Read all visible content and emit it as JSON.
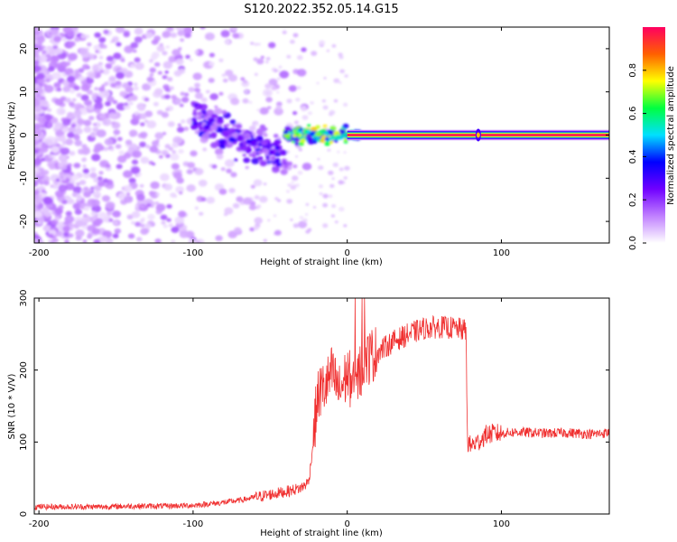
{
  "chart_data": [
    {
      "type": "heatmap",
      "title": "S120.2022.352.05.14.G15",
      "xlabel": "Height of straight line (km)",
      "ylabel": "Frequency (Hz)",
      "xlim": [
        -203,
        170
      ],
      "ylim": [
        -25,
        25
      ],
      "xticks": [
        -200,
        -100,
        0,
        100
      ],
      "yticks": [
        -20,
        -10,
        0,
        10,
        20
      ],
      "colorbar": {
        "label": "Normalized spectral amplitude",
        "range": [
          0,
          1
        ],
        "ticks": [
          "0.0",
          "0.2",
          "0.4",
          "0.6",
          "0.8"
        ],
        "colors": [
          "#ffffff",
          "#c080ff",
          "#7000ff",
          "#0000ff",
          "#00e0ff",
          "#00ff40",
          "#ffff00",
          "#ff6000",
          "#ff0060"
        ]
      },
      "features": [
        {
          "x_range": [
            -203,
            -60
          ],
          "freq_range": [
            -25,
            25
          ],
          "amplitude": "0.0-0.2",
          "description": "noise"
        },
        {
          "x_range": [
            -100,
            -40
          ],
          "freq_center_start": 4,
          "freq_center_end": -8,
          "amplitude": "0.1-0.5"
        },
        {
          "x_range": [
            -40,
            0
          ],
          "freq_center": 0,
          "amplitude": "0.3-0.9"
        },
        {
          "x_range": [
            0,
            170
          ],
          "freq_center": 0,
          "amplitude": "1.0"
        }
      ]
    },
    {
      "type": "line",
      "xlabel": "Height of straight line (km)",
      "ylabel": "SNR (10 * V/V)",
      "xlim": [
        -203,
        170
      ],
      "ylim": [
        0,
        300
      ],
      "xticks": [
        -200,
        -100,
        0,
        100
      ],
      "yticks": [
        0,
        100,
        200,
        300
      ],
      "color": "#f03030",
      "series": [
        {
          "x": [
            -203,
            -180,
            -160,
            -140,
            -120,
            -100,
            -90,
            -80,
            -70,
            -60,
            -50,
            -40,
            -30,
            -25,
            -22,
            -20,
            -18,
            -15,
            -12,
            -10,
            -5,
            0,
            5,
            10,
            15,
            20,
            30,
            40,
            50,
            60,
            70,
            77,
            78,
            80,
            85,
            90,
            95,
            100,
            110,
            120,
            130,
            140,
            150,
            160,
            170
          ],
          "y": [
            10,
            10,
            10,
            11,
            11,
            12,
            14,
            16,
            19,
            23,
            27,
            31,
            36,
            45,
            100,
            150,
            170,
            175,
            185,
            195,
            170,
            195,
            175,
            210,
            220,
            225,
            240,
            250,
            258,
            260,
            258,
            255,
            100,
            95,
            100,
            110,
            112,
            112,
            114,
            113,
            112,
            113,
            112,
            111,
            113
          ]
        }
      ]
    }
  ]
}
